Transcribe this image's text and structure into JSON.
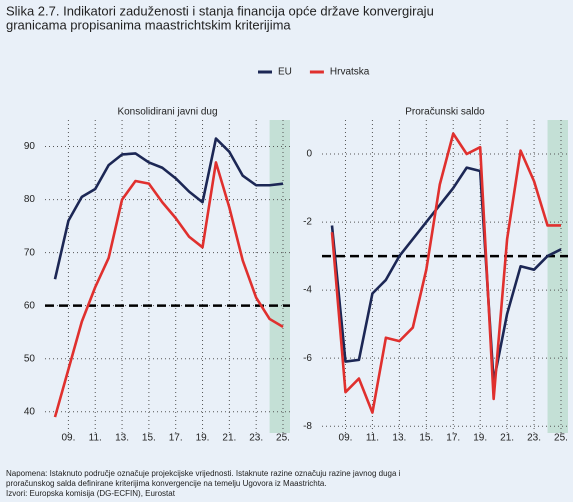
{
  "title": [
    "Slika 2.7. Indikatori zaduženosti i stanja financija opće države konvergiraju",
    "granicama propisanima maastrichtskim kriterijima"
  ],
  "chart_data": [
    {
      "type": "line",
      "title": "Konsolidirani javni dug",
      "categories": [
        null,
        "09.",
        null,
        "11.",
        null,
        "13.",
        null,
        "15.",
        null,
        "17.",
        null,
        "19.",
        null,
        "21.",
        null,
        "23.",
        null,
        "25."
      ],
      "series": [
        {
          "name": "EU",
          "color": "#1c2755",
          "values": [
            65,
            76,
            80.5,
            82,
            86.5,
            88.5,
            88.7,
            87,
            86,
            84,
            81.5,
            79.5,
            91.5,
            89,
            84.5,
            82.7,
            82.7,
            83
          ]
        },
        {
          "name": "Hrvatska",
          "color": "#e0302e",
          "values": [
            39,
            48,
            57,
            63.5,
            69,
            80,
            83.5,
            83,
            79.5,
            76.5,
            73,
            71,
            87,
            78.5,
            68.5,
            61.5,
            57.5,
            56
          ]
        }
      ],
      "ylim": [
        36,
        95
      ],
      "yticks": [
        40,
        50,
        60,
        70,
        80,
        90
      ],
      "reference_line": 60,
      "highlight_from": 16,
      "grid": true
    },
    {
      "type": "line",
      "title": "Proračunski saldo",
      "categories": [
        null,
        "09.",
        null,
        "11.",
        null,
        "13.",
        null,
        "15.",
        null,
        "17.",
        null,
        "19.",
        null,
        "21.",
        null,
        "23.",
        null,
        "25."
      ],
      "series": [
        {
          "name": "EU",
          "color": "#1c2755",
          "values": [
            -2.1,
            -6.1,
            -6.05,
            -4.1,
            -3.7,
            -3.0,
            -2.5,
            -2.0,
            -1.5,
            -1.0,
            -0.4,
            -0.5,
            -6.7,
            -4.7,
            -3.3,
            -3.4,
            -3.0,
            -2.8
          ]
        },
        {
          "name": "Hrvatska",
          "color": "#e0302e",
          "values": [
            -2.3,
            -7.0,
            -6.6,
            -7.6,
            -5.4,
            -5.5,
            -5.1,
            -3.4,
            -0.9,
            0.6,
            0.0,
            0.2,
            -7.2,
            -2.5,
            0.1,
            -0.8,
            -2.1,
            -2.1
          ]
        }
      ],
      "ylim": [
        -8.2,
        1
      ],
      "yticks": [
        0,
        -2,
        -4,
        -6,
        -8
      ],
      "reference_line": -3,
      "highlight_from": 16,
      "grid": true
    }
  ],
  "notes": [
    "Napomena: Istaknuto područje označuje projekcijske vrijednosti. Istaknute razine označuju razine javnog duga i",
    "proračunskog salda definirane kriterijima konvergencije na temelju Ugovora iz Maastrichta.",
    "Izvori: Europska komisija (DG-ECFIN), Eurostat"
  ]
}
